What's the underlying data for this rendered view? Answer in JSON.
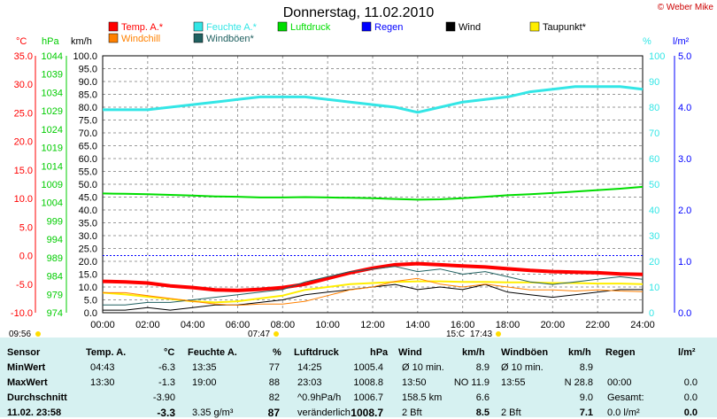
{
  "title": "Donnerstag, 11.02.2010",
  "watermark": "© Weber Mike",
  "legend": [
    {
      "label": "Temp. A.*",
      "color": "#ff0000"
    },
    {
      "label": "Feuchte A.*",
      "color": "#33e6e6"
    },
    {
      "label": "Luftdruck",
      "color": "#00dd00"
    },
    {
      "label": "Regen",
      "color": "#0000ff"
    },
    {
      "label": "Wind",
      "color": "#000000"
    },
    {
      "label": "Taupunkt*",
      "color": "#ffee00"
    },
    {
      "label": "Windchill",
      "color": "#ff8000"
    },
    {
      "label": "Windböen*",
      "color": "#206060"
    }
  ],
  "axes": {
    "temp": {
      "unit": "°C",
      "ticks": [
        "35.0",
        "30.0",
        "25.0",
        "20.0",
        "15.0",
        "10.0",
        "5.0",
        "0.0",
        "-5.0",
        "-10.0"
      ]
    },
    "hpa": {
      "unit": "hPa",
      "ticks": [
        "1044",
        "1039",
        "1034",
        "1029",
        "1024",
        "1019",
        "1014",
        "1009",
        "1004",
        "999",
        "994",
        "989",
        "984",
        "979",
        "974"
      ]
    },
    "kmh": {
      "unit": "km/h",
      "ticks": [
        "100.0",
        "95.0",
        "90.0",
        "85.0",
        "80.0",
        "75.0",
        "70.0",
        "65.0",
        "60.0",
        "55.0",
        "50.0",
        "45.0",
        "40.0",
        "35.0",
        "30.0",
        "25.0",
        "20.0",
        "15.0",
        "10.0",
        "5.0",
        "0.0"
      ]
    },
    "pct": {
      "unit": "%",
      "ticks": [
        "100",
        "90",
        "80",
        "70",
        "60",
        "50",
        "40",
        "30",
        "20",
        "10",
        "0"
      ]
    },
    "rain": {
      "unit": "l/m²",
      "ticks": [
        "5.0",
        "4.0",
        "3.0",
        "2.0",
        "1.0",
        "0.0"
      ]
    },
    "time": [
      "00:00",
      "02:00",
      "04:00",
      "06:00",
      "08:00",
      "10:00",
      "12:00",
      "14:00",
      "16:00",
      "18:00",
      "20:00",
      "22:00",
      "24:00"
    ]
  },
  "sun": {
    "sunrise_left": "09:56",
    "sunrise": "07:47",
    "sunset_mid": "15:C",
    "sunset": "17:43"
  },
  "chart_data": {
    "type": "line",
    "x": [
      0,
      1,
      2,
      3,
      4,
      5,
      6,
      7,
      8,
      9,
      10,
      11,
      12,
      13,
      14,
      15,
      16,
      17,
      18,
      19,
      20,
      21,
      22,
      23,
      24
    ],
    "series": [
      {
        "name": "Temp. A.*",
        "axis": "temp",
        "values": [
          -4.5,
          -4.6,
          -4.8,
          -5.3,
          -5.6,
          -6.0,
          -6.1,
          -5.9,
          -5.6,
          -5.0,
          -4.0,
          -3.0,
          -2.2,
          -1.6,
          -1.4,
          -1.6,
          -1.8,
          -2.0,
          -2.3,
          -2.6,
          -2.8,
          -2.9,
          -3.0,
          -3.2,
          -3.3
        ]
      },
      {
        "name": "Feuchte A.*",
        "axis": "pct",
        "values": [
          79,
          79,
          79,
          80,
          81,
          82,
          83,
          84,
          84,
          84,
          83,
          82,
          81,
          80,
          78,
          80,
          82,
          83,
          84,
          86,
          87,
          88,
          88,
          88,
          87
        ]
      },
      {
        "name": "Luftdruck",
        "axis": "hpa",
        "values": [
          1006.5,
          1006.4,
          1006.3,
          1006.1,
          1005.9,
          1005.7,
          1005.6,
          1005.4,
          1005.4,
          1005.5,
          1005.4,
          1005.3,
          1005.2,
          1005.0,
          1004.8,
          1004.9,
          1005.2,
          1005.6,
          1006.0,
          1006.3,
          1006.6,
          1007.0,
          1007.4,
          1007.8,
          1008.3
        ]
      },
      {
        "name": "Taupunkt*",
        "axis": "temp",
        "values": [
          -6.5,
          -6.8,
          -7.2,
          -7.6,
          -8.0,
          -8.2,
          -8.0,
          -7.5,
          -7.0,
          -6.0,
          -5.5,
          -5.0,
          -4.8,
          -4.6,
          -4.5,
          -4.5,
          -4.6,
          -4.6,
          -4.7,
          -4.7,
          -4.8,
          -4.8,
          -4.9,
          -4.9,
          -5.0
        ]
      },
      {
        "name": "Wind",
        "axis": "kmh",
        "values": [
          1,
          1,
          2,
          1,
          2,
          3,
          3,
          4,
          5,
          7,
          8,
          9,
          10,
          11,
          9,
          10,
          9,
          11,
          8,
          7,
          6,
          7,
          8,
          9,
          9
        ]
      },
      {
        "name": "Windböen*",
        "axis": "kmh",
        "values": [
          3,
          3,
          4,
          4,
          5,
          6,
          7,
          8,
          9,
          12,
          14,
          16,
          17,
          18,
          16,
          17,
          15,
          16,
          14,
          12,
          11,
          12,
          13,
          14,
          13
        ]
      },
      {
        "name": "Windchill",
        "axis": "temp",
        "values": [
          -6.5,
          -6.5,
          -7.0,
          -7.5,
          -8.0,
          -8.5,
          -8.7,
          -8.5,
          -8.5,
          -8.0,
          -7.0,
          -6.0,
          -5.5,
          -4.5,
          -4.0,
          -5.0,
          -5.5,
          -5.0,
          -5.5,
          -6.0,
          -6.0,
          -6.2,
          -6.0,
          -6.2,
          -6.3
        ]
      }
    ]
  },
  "table": {
    "headers": {
      "sensor": "Sensor",
      "temp": "Temp. A.",
      "temp_unit": "°C",
      "hum": "Feuchte A.",
      "hum_unit": "%",
      "press": "Luftdruck",
      "press_unit": "hPa",
      "wind": "Wind",
      "wind_unit": "km/h",
      "gust": "Windböen",
      "gust_unit": "km/h",
      "rain": "Regen",
      "rain_unit": "l/m²"
    },
    "rows": [
      {
        "label": "MinWert",
        "temp_t": "04:43",
        "temp_v": "-6.3",
        "hum_t": "13:35",
        "hum_v": "77",
        "press_t": "14:25",
        "press_v": "1005.4",
        "wind_l": "Ø 10 min.",
        "wind_v": "8.9",
        "gust_l": "Ø 10 min.",
        "gust_v": "8.9",
        "rain_l": "",
        "rain_v": ""
      },
      {
        "label": "MaxWert",
        "temp_t": "13:30",
        "temp_v": "-1.3",
        "hum_t": "19:00",
        "hum_v": "88",
        "press_t": "23:03",
        "press_v": "1008.8",
        "wind_l": "13:50",
        "wind_v": "NO 11.9",
        "gust_l": "13:55",
        "gust_v": "N 28.8",
        "rain_l": "00:00",
        "rain_v": "0.0"
      },
      {
        "label": "Durchschnitt",
        "temp_t": "",
        "temp_v": "-3.90",
        "hum_t": "",
        "hum_v": "82",
        "press_t": "^0.9hPa/h",
        "press_v": "1006.7",
        "wind_l": "158.5 km",
        "wind_v": "6.6",
        "gust_l": "",
        "gust_v": "9.0",
        "rain_l": "Gesamt:",
        "rain_v": "0.0"
      },
      {
        "label": "11.02. 23:58",
        "temp_t": "",
        "temp_v": "-3.3",
        "hum_t": "3.35 g/m³",
        "hum_v": "87",
        "press_t": "veränderlich",
        "press_v": "1008.7",
        "wind_l": "2 Bft",
        "wind_v": "8.5",
        "gust_l": "2 Bft",
        "gust_v": "7.1",
        "rain_l": "0.0 l/m²",
        "rain_v": "0.0"
      }
    ]
  }
}
